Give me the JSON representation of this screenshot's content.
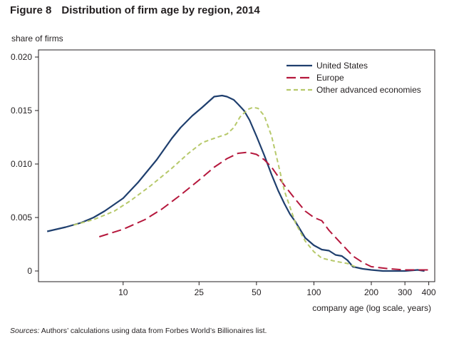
{
  "figure": {
    "number": "Figure 8",
    "title": "Distribution of firm age by region, 2014"
  },
  "source": {
    "heading": "Sources:",
    "text": "Authors’ calculations using data from Forbes World’s Billionaires list."
  },
  "chart_data": {
    "type": "line",
    "title": "Distribution of firm age by region, 2014",
    "xlabel": "company age (log scale, years)",
    "ylabel": "share of firms",
    "x_scale": "log",
    "xlim": [
      3.6,
      430
    ],
    "ylim": [
      0,
      0.02
    ],
    "x_ticks": [
      10,
      25,
      50,
      100,
      200,
      300,
      400
    ],
    "x_tick_labels": [
      "10",
      "25",
      "50",
      "100",
      "200",
      "300",
      "400"
    ],
    "y_ticks": [
      0,
      0.005,
      0.01,
      0.015,
      0.02
    ],
    "y_tick_labels": [
      "0",
      "0.005",
      "0.010",
      "0.015",
      "0.020"
    ],
    "grid": false,
    "legend_position": "top-right",
    "series": [
      {
        "name": "United States",
        "color": "#1f3f6e",
        "style": "solid",
        "x": [
          4,
          5,
          6,
          7,
          8,
          10,
          12,
          15,
          18,
          20,
          23,
          26,
          30,
          33,
          35,
          38,
          40,
          43,
          46,
          50,
          55,
          60,
          65,
          70,
          75,
          80,
          90,
          100,
          110,
          120,
          130,
          140,
          150,
          160,
          170,
          180,
          200,
          230,
          260,
          300,
          350,
          380
        ],
        "y": [
          0.0037,
          0.0041,
          0.0045,
          0.005,
          0.0056,
          0.0068,
          0.0083,
          0.0104,
          0.0124,
          0.0134,
          0.0145,
          0.0153,
          0.0163,
          0.0164,
          0.0163,
          0.016,
          0.0156,
          0.015,
          0.0141,
          0.0126,
          0.0108,
          0.009,
          0.0075,
          0.0063,
          0.0053,
          0.0046,
          0.0031,
          0.0024,
          0.002,
          0.0019,
          0.0015,
          0.0014,
          0.001,
          0.0004,
          0.0003,
          0.0002,
          0.0001,
          0.0,
          0.0,
          0.0,
          0.0001,
          0.0
        ]
      },
      {
        "name": "Europe",
        "color": "#b5173c",
        "style": "dashed",
        "x": [
          7.5,
          10,
          13,
          16,
          20,
          25,
          30,
          35,
          40,
          45,
          50,
          55,
          60,
          70,
          80,
          90,
          100,
          110,
          120,
          140,
          160,
          180,
          200,
          250,
          300,
          350,
          400
        ],
        "y": [
          0.0032,
          0.0039,
          0.0048,
          0.0058,
          0.0071,
          0.0085,
          0.0097,
          0.0105,
          0.011,
          0.0111,
          0.0109,
          0.0104,
          0.0097,
          0.008,
          0.0067,
          0.0056,
          0.005,
          0.0047,
          0.0038,
          0.0025,
          0.0014,
          0.0008,
          0.0004,
          0.0002,
          0.0001,
          0.0001,
          0.0001
        ]
      },
      {
        "name": "Other advanced economies",
        "color": "#b7c96b",
        "style": "dashed",
        "x": [
          5.5,
          7,
          9,
          11,
          14,
          18,
          22,
          26,
          30,
          35,
          38,
          41,
          45,
          48,
          51,
          55,
          60,
          65,
          70,
          80,
          90,
          100,
          110,
          130,
          150,
          170
        ],
        "y": [
          0.0043,
          0.0048,
          0.0056,
          0.0066,
          0.008,
          0.0096,
          0.011,
          0.012,
          0.0124,
          0.0128,
          0.0134,
          0.0144,
          0.0151,
          0.0153,
          0.0152,
          0.0145,
          0.0126,
          0.01,
          0.0075,
          0.0045,
          0.0028,
          0.0018,
          0.0012,
          0.0009,
          0.0007,
          0.0003
        ]
      }
    ]
  }
}
